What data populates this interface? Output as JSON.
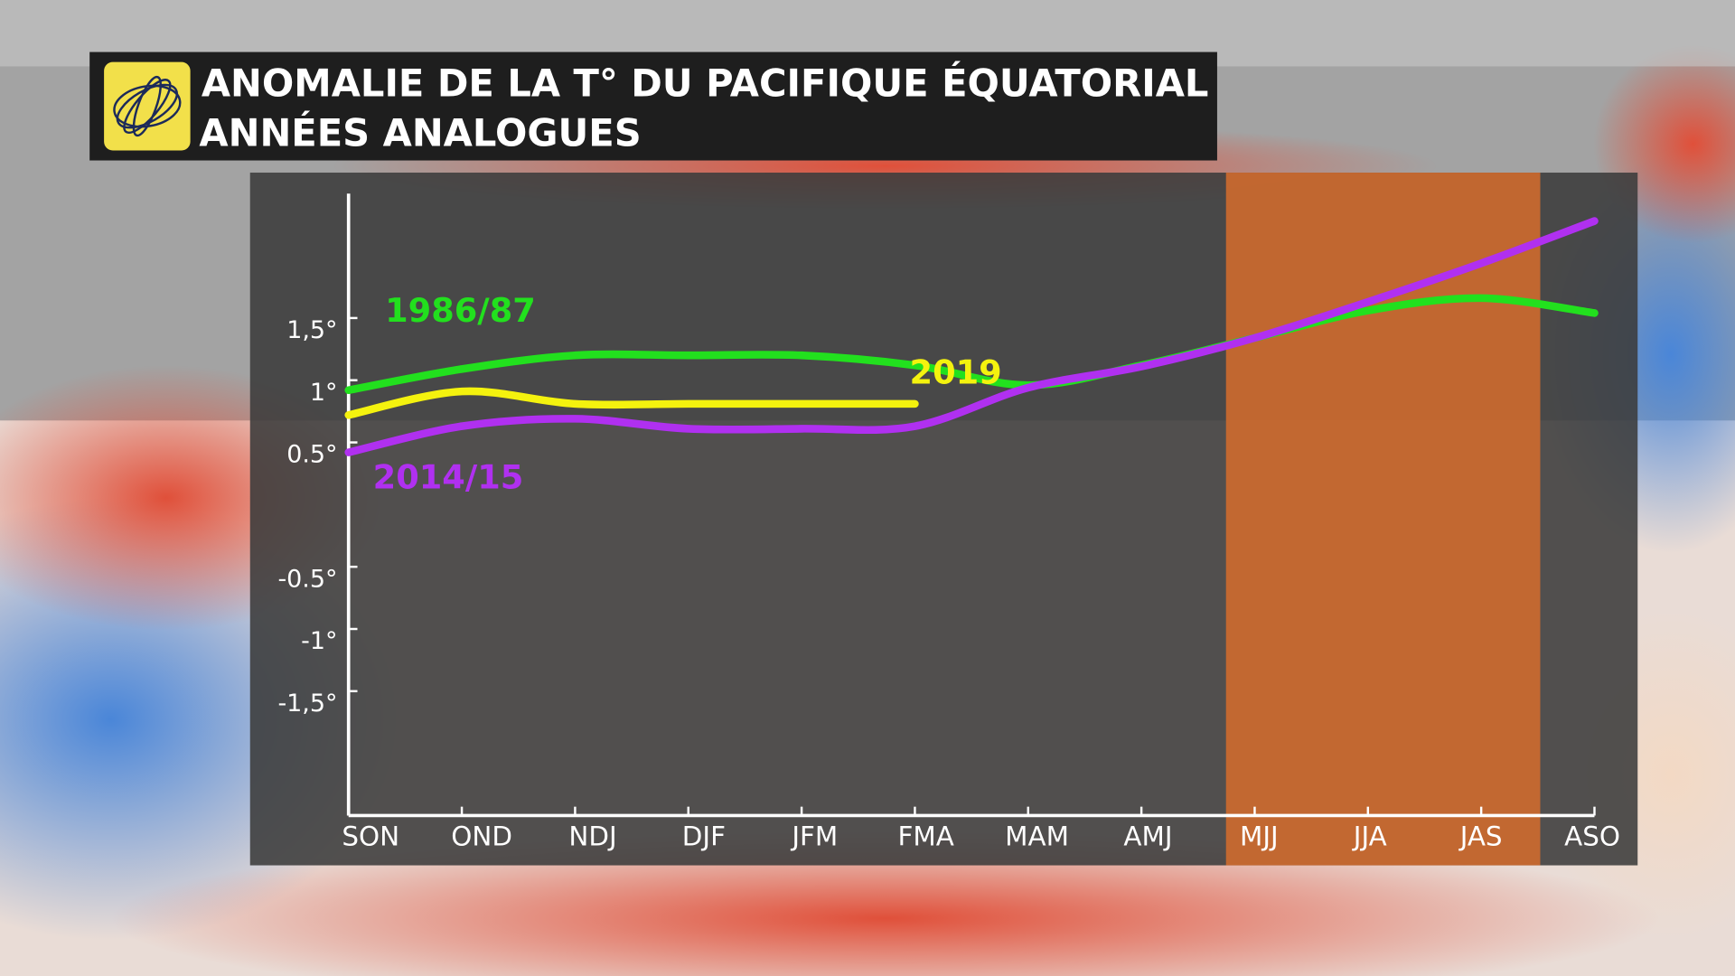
{
  "chart_data": {
    "type": "line",
    "title": "ANOMALIE DE LA T°  DU PACIFIQUE ÉQUATORIAL",
    "subtitle": "ANNÉES ANALOGUES",
    "categories": [
      "SON",
      "OND",
      "NDJ",
      "DJF",
      "JFM",
      "FMA",
      "MAM",
      "AMJ",
      "MJJ",
      "JJA",
      "JAS",
      "ASO"
    ],
    "series": [
      {
        "name": "1986/87",
        "color": "#22e01e",
        "values": [
          0.92,
          1.09,
          1.2,
          1.2,
          1.2,
          1.12,
          0.96,
          1.12,
          1.34,
          1.56,
          1.66,
          1.54
        ]
      },
      {
        "name": "2019",
        "color": "#f4f20e",
        "values": [
          0.72,
          0.91,
          0.81,
          0.81,
          0.81,
          0.81,
          null,
          null,
          null,
          null,
          null,
          null
        ]
      },
      {
        "name": "2014/15",
        "color": "#b030f0",
        "values": [
          0.42,
          0.63,
          0.69,
          0.61,
          0.61,
          0.63,
          0.94,
          1.11,
          1.34,
          1.63,
          1.94,
          2.28
        ]
      }
    ],
    "ylim": [
      -2.5,
      2.5
    ],
    "yticks": [
      {
        "value": 1.5,
        "label": "1,5°"
      },
      {
        "value": 1,
        "label": "1°"
      },
      {
        "value": 0.5,
        "label": "0.5°"
      },
      {
        "value": -0.5,
        "label": "-0.5°"
      },
      {
        "value": -1,
        "label": "-1°"
      },
      {
        "value": -1.5,
        "label": "-1,5°"
      }
    ]
  }
}
